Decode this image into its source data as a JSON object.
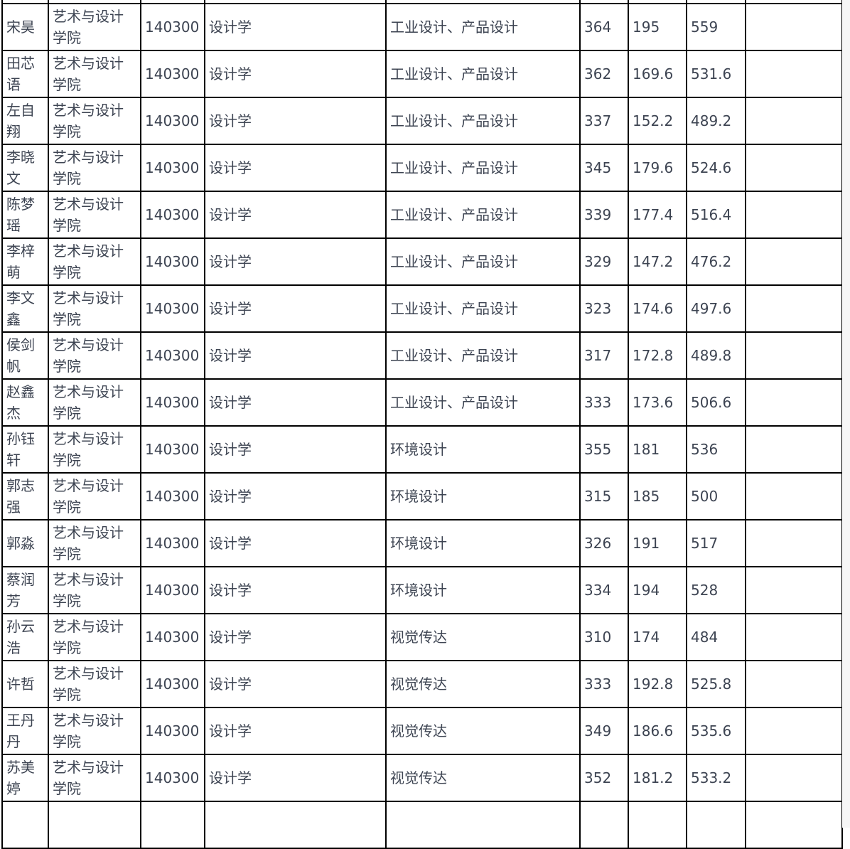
{
  "table": {
    "rows": [
      [
        "",
        "",
        "",
        "",
        "",
        "",
        "",
        "",
        ""
      ],
      [
        "宋昊",
        "艺术与设计学院",
        "140300",
        "设计学",
        "工业设计、产品设计",
        "364",
        "195",
        "559",
        ""
      ],
      [
        "田芯语",
        "艺术与设计学院",
        "140300",
        "设计学",
        "工业设计、产品设计",
        "362",
        "169.6",
        "531.6",
        ""
      ],
      [
        "左自翔",
        "艺术与设计学院",
        "140300",
        "设计学",
        "工业设计、产品设计",
        "337",
        "152.2",
        "489.2",
        ""
      ],
      [
        "李晓文",
        "艺术与设计学院",
        "140300",
        "设计学",
        "工业设计、产品设计",
        "345",
        "179.6",
        "524.6",
        ""
      ],
      [
        "陈梦瑶",
        "艺术与设计学院",
        "140300",
        "设计学",
        "工业设计、产品设计",
        "339",
        "177.4",
        "516.4",
        ""
      ],
      [
        "李梓萌",
        "艺术与设计学院",
        "140300",
        "设计学",
        "工业设计、产品设计",
        "329",
        "147.2",
        "476.2",
        ""
      ],
      [
        "李文鑫",
        "艺术与设计学院",
        "140300",
        "设计学",
        "工业设计、产品设计",
        "323",
        "174.6",
        "497.6",
        ""
      ],
      [
        "侯剑帆",
        "艺术与设计学院",
        "140300",
        "设计学",
        "工业设计、产品设计",
        "317",
        "172.8",
        "489.8",
        ""
      ],
      [
        "赵鑫杰",
        "艺术与设计学院",
        "140300",
        "设计学",
        "工业设计、产品设计",
        "333",
        "173.6",
        "506.6",
        ""
      ],
      [
        "孙钰轩",
        "艺术与设计学院",
        "140300",
        "设计学",
        "环境设计",
        "355",
        "181",
        "536",
        ""
      ],
      [
        "郭志强",
        "艺术与设计学院",
        "140300",
        "设计学",
        "环境设计",
        "315",
        "185",
        "500",
        ""
      ],
      [
        "郭淼",
        "艺术与设计学院",
        "140300",
        "设计学",
        "环境设计",
        "326",
        "191",
        "517",
        ""
      ],
      [
        "蔡润芳",
        "艺术与设计学院",
        "140300",
        "设计学",
        "环境设计",
        "334",
        "194",
        "528",
        ""
      ],
      [
        "孙云浩",
        "艺术与设计学院",
        "140300",
        "设计学",
        "视觉传达",
        "310",
        "174",
        "484",
        ""
      ],
      [
        "许哲",
        "艺术与设计学院",
        "140300",
        "设计学",
        "视觉传达",
        "333",
        "192.8",
        "525.8",
        ""
      ],
      [
        "王丹丹",
        "艺术与设计学院",
        "140300",
        "设计学",
        "视觉传达",
        "349",
        "186.6",
        "535.6",
        ""
      ],
      [
        "苏美婷",
        "艺术与设计学院",
        "140300",
        "设计学",
        "视觉传达",
        "352",
        "181.2",
        "533.2",
        ""
      ],
      [
        "",
        "",
        "",
        "",
        "",
        "",
        "",
        "",
        ""
      ]
    ]
  }
}
